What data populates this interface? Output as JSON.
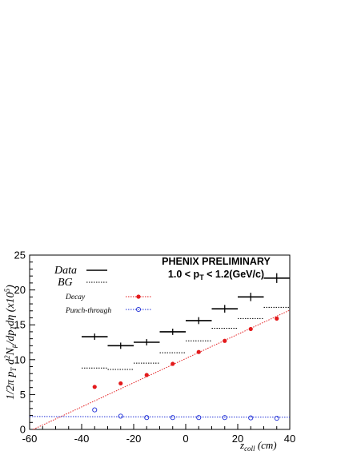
{
  "chart_data": {
    "type": "scatter",
    "title": "PHENIX PRELIMINARY",
    "subtitle_parts": {
      "pre": "1.0 < p",
      "sub": "T",
      "post": " < 1.2(GeV/c)"
    },
    "xlabel_parts": {
      "main": "z",
      "sub": "coll",
      "post": " (cm)"
    },
    "ylabel": "1/2π p_T d²N_μ/dp_T dη (x10⁵)",
    "xlim": [
      -60,
      40
    ],
    "ylim": [
      0,
      25
    ],
    "x_ticks": [
      "-60",
      "-40",
      "-20",
      "0",
      "20",
      "40"
    ],
    "x_tick_values": [
      -60,
      -40,
      -20,
      0,
      20,
      40
    ],
    "y_ticks": [
      "0",
      "5",
      "10",
      "15",
      "20",
      "25"
    ],
    "y_tick_values": [
      0,
      5,
      10,
      15,
      20,
      25
    ],
    "legend": [
      {
        "label": "Data",
        "style": "solid-black"
      },
      {
        "label": "BG",
        "style": "dotted-black"
      },
      {
        "label": "Decay",
        "style": "red-dot"
      },
      {
        "label": "Punch-through",
        "style": "blue-open-circle"
      }
    ],
    "series": [
      {
        "name": "Data",
        "color": "#000000",
        "x": [
          -35,
          -25,
          -15,
          -5,
          5,
          15,
          25,
          35
        ],
        "x_halfwidth": 5,
        "y": [
          13.3,
          12.0,
          12.5,
          14.0,
          15.6,
          17.3,
          19.0,
          21.7
        ],
        "y_err": [
          0.45,
          0.45,
          0.45,
          0.45,
          0.5,
          0.55,
          0.6,
          0.7
        ]
      },
      {
        "name": "BG",
        "color": "#000000",
        "x": [
          -35,
          -25,
          -15,
          -5,
          5,
          15,
          25,
          35
        ],
        "x_halfwidth": 5,
        "y": [
          8.8,
          8.6,
          9.5,
          11.0,
          12.7,
          14.5,
          15.9,
          17.5
        ]
      },
      {
        "name": "Decay",
        "color": "#e31a1c",
        "x": [
          -35,
          -25,
          -15,
          -5,
          5,
          15,
          25,
          35
        ],
        "y": [
          6.1,
          6.6,
          7.8,
          9.4,
          11.1,
          12.7,
          14.4,
          15.9
        ]
      },
      {
        "name": "Punch-through",
        "color": "#1f2fd6",
        "x": [
          -35,
          -25,
          -15,
          -5,
          5,
          15,
          25,
          35
        ],
        "y": [
          2.8,
          1.9,
          1.7,
          1.7,
          1.7,
          1.7,
          1.65,
          1.6
        ]
      }
    ],
    "fits": [
      {
        "series": "Decay",
        "color": "#e31a1c",
        "x1": -58.6,
        "y1": 0.0,
        "x2": 40,
        "y2": 17.1
      },
      {
        "series": "Punch-through",
        "color": "#1f2fd6",
        "x1": -60,
        "y1": 1.85,
        "x2": 40,
        "y2": 1.75
      }
    ],
    "grid": false
  }
}
